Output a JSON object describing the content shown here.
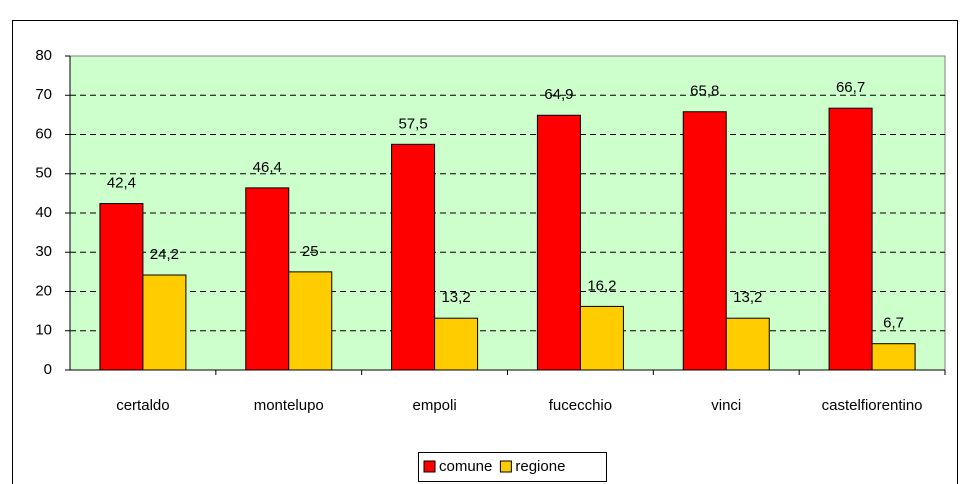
{
  "chart_data": {
    "type": "bar",
    "categories": [
      "certaldo",
      "montelupo",
      "empoli",
      "fucecchio",
      "vinci",
      "castelfiorentino"
    ],
    "series": [
      {
        "name": "comune",
        "color": "#ff0000",
        "values": [
          42.4,
          46.4,
          57.5,
          64.9,
          65.8,
          66.7
        ],
        "value_labels": [
          "42,4",
          "46,4",
          "57,5",
          "64,9",
          "65,8",
          "66,7"
        ]
      },
      {
        "name": "regione",
        "color": "#ffcc00",
        "values": [
          24.2,
          25,
          13.2,
          16.2,
          13.2,
          6.7
        ],
        "value_labels": [
          "24,2",
          "25",
          "13,2",
          "16,2",
          "13,2",
          "6,7"
        ]
      }
    ],
    "ylim": [
      0,
      80
    ],
    "yticks": [
      0,
      10,
      20,
      30,
      40,
      50,
      60,
      70,
      80
    ],
    "grid": true,
    "plot_background": "#ccffcc",
    "legend": "bottom"
  }
}
